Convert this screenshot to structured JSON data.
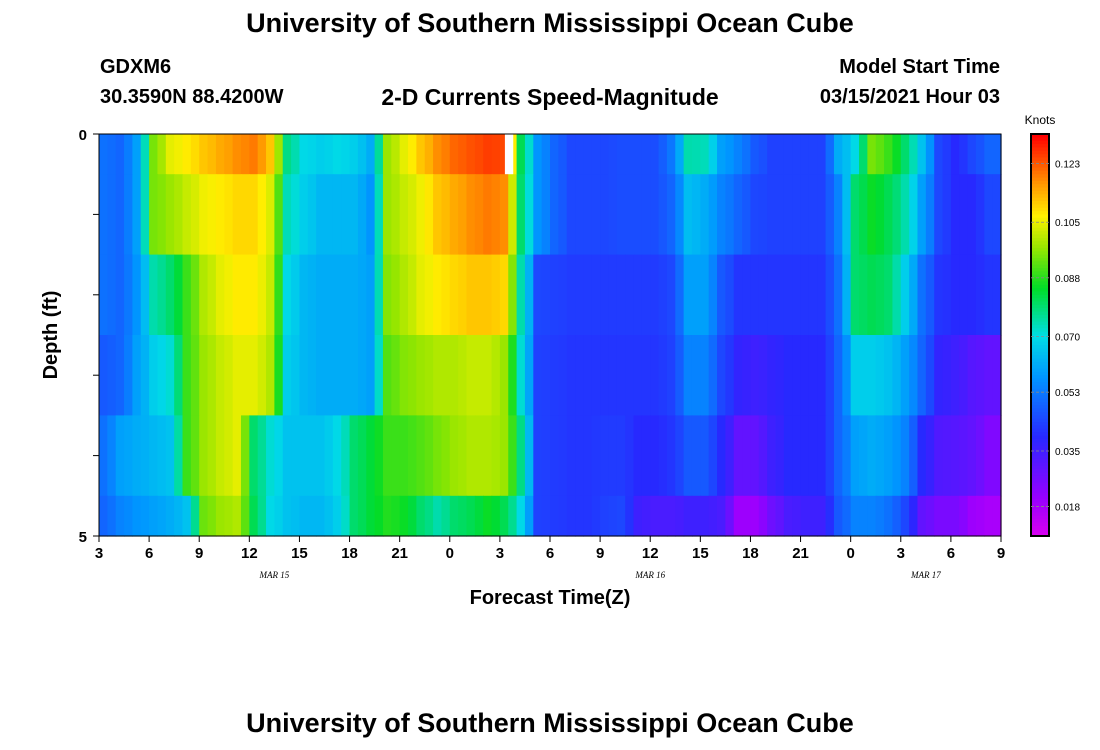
{
  "header": {
    "title": "University of Southern Mississippi Ocean Cube",
    "station": "GDXM6",
    "coordinates": "30.3590N 88.4200W",
    "chart_title": "2-D Currents Speed-Magnitude",
    "start_label": "Model Start Time",
    "start_value": "03/15/2021 Hour 03"
  },
  "footer": {
    "title": "University of Southern Mississippi Ocean Cube"
  },
  "chart_data": {
    "type": "heatmap",
    "title": "2-D Currents Speed-Magnitude",
    "xlabel": "Forecast Time(Z)",
    "ylabel": "Depth (ft)",
    "x_tick_labels": [
      "3",
      "6",
      "9",
      "12",
      "15",
      "18",
      "21",
      "0",
      "3",
      "6",
      "9",
      "12",
      "15",
      "18",
      "21",
      "0",
      "3",
      "6",
      "9"
    ],
    "date_labels": [
      "MAR 15",
      "MAR 16",
      "MAR 17"
    ],
    "y_tick_labels": [
      "0",
      "5"
    ],
    "ylim": [
      0,
      5
    ],
    "x_range_hours": [
      3,
      57
    ],
    "colorbar": {
      "title": "Knots",
      "range": [
        0.009,
        0.132
      ],
      "tick_labels": [
        "0.123",
        "0.105",
        "0.088",
        "0.070",
        "0.053",
        "0.035",
        "0.018"
      ],
      "tick_values": [
        0.123,
        0.105,
        0.088,
        0.07,
        0.053,
        0.035,
        0.018
      ]
    },
    "depth_layers": [
      "0-0.5",
      "0.5-1.5",
      "1.5-2.5",
      "2.5-3.5",
      "3.5-4.5",
      "4.5-5"
    ],
    "time_bins": 54,
    "speed_profile_knots": [
      [
        0.052,
        0.05,
        0.06,
        0.095,
        0.105,
        0.108,
        0.112,
        0.115,
        0.118,
        0.12,
        0.112,
        0.078,
        0.07,
        0.068,
        0.07,
        0.068,
        0.062,
        0.098,
        0.105,
        0.112,
        0.118,
        0.122,
        0.124,
        0.126,
        0.125,
        0.082,
        0.058,
        0.05,
        0.045,
        0.045,
        0.045,
        0.046,
        0.046,
        0.046,
        0.053,
        0.075,
        0.074,
        0.06,
        0.055,
        0.048,
        0.044,
        0.044,
        0.044,
        0.044,
        0.062,
        0.07,
        0.095,
        0.09,
        0.08,
        0.066,
        0.045,
        0.04,
        0.045,
        0.05
      ],
      [
        0.052,
        0.05,
        0.06,
        0.095,
        0.098,
        0.102,
        0.106,
        0.108,
        0.11,
        0.11,
        0.104,
        0.074,
        0.068,
        0.064,
        0.064,
        0.064,
        0.058,
        0.098,
        0.102,
        0.106,
        0.112,
        0.115,
        0.118,
        0.12,
        0.118,
        0.08,
        0.058,
        0.05,
        0.045,
        0.045,
        0.045,
        0.046,
        0.046,
        0.046,
        0.05,
        0.065,
        0.062,
        0.055,
        0.05,
        0.045,
        0.044,
        0.044,
        0.044,
        0.044,
        0.055,
        0.08,
        0.086,
        0.082,
        0.075,
        0.06,
        0.045,
        0.04,
        0.04,
        0.045
      ],
      [
        0.052,
        0.05,
        0.058,
        0.075,
        0.08,
        0.09,
        0.1,
        0.105,
        0.108,
        0.108,
        0.102,
        0.07,
        0.064,
        0.062,
        0.062,
        0.062,
        0.06,
        0.096,
        0.1,
        0.105,
        0.108,
        0.11,
        0.112,
        0.112,
        0.11,
        0.075,
        0.045,
        0.044,
        0.043,
        0.043,
        0.043,
        0.043,
        0.043,
        0.043,
        0.045,
        0.06,
        0.06,
        0.048,
        0.042,
        0.042,
        0.042,
        0.042,
        0.042,
        0.042,
        0.052,
        0.08,
        0.082,
        0.08,
        0.068,
        0.052,
        0.042,
        0.04,
        0.04,
        0.042
      ],
      [
        0.048,
        0.05,
        0.06,
        0.068,
        0.072,
        0.09,
        0.098,
        0.102,
        0.105,
        0.105,
        0.1,
        0.068,
        0.064,
        0.062,
        0.062,
        0.062,
        0.06,
        0.092,
        0.096,
        0.098,
        0.1,
        0.1,
        0.102,
        0.102,
        0.098,
        0.072,
        0.044,
        0.043,
        0.042,
        0.042,
        0.042,
        0.042,
        0.042,
        0.042,
        0.044,
        0.055,
        0.055,
        0.045,
        0.038,
        0.036,
        0.038,
        0.04,
        0.04,
        0.04,
        0.05,
        0.068,
        0.068,
        0.066,
        0.06,
        0.05,
        0.038,
        0.036,
        0.032,
        0.03
      ],
      [
        0.052,
        0.06,
        0.062,
        0.064,
        0.066,
        0.09,
        0.098,
        0.102,
        0.105,
        0.08,
        0.072,
        0.066,
        0.066,
        0.066,
        0.07,
        0.08,
        0.084,
        0.09,
        0.09,
        0.092,
        0.095,
        0.098,
        0.1,
        0.1,
        0.098,
        0.078,
        0.044,
        0.043,
        0.042,
        0.042,
        0.043,
        0.043,
        0.04,
        0.04,
        0.042,
        0.048,
        0.048,
        0.04,
        0.03,
        0.03,
        0.036,
        0.04,
        0.04,
        0.04,
        0.05,
        0.06,
        0.062,
        0.06,
        0.055,
        0.04,
        0.033,
        0.032,
        0.03,
        0.025
      ],
      [
        0.05,
        0.055,
        0.058,
        0.06,
        0.062,
        0.066,
        0.094,
        0.098,
        0.1,
        0.082,
        0.07,
        0.066,
        0.064,
        0.064,
        0.068,
        0.08,
        0.084,
        0.088,
        0.086,
        0.08,
        0.075,
        0.08,
        0.082,
        0.086,
        0.082,
        0.07,
        0.044,
        0.043,
        0.042,
        0.042,
        0.044,
        0.045,
        0.036,
        0.034,
        0.034,
        0.036,
        0.036,
        0.034,
        0.02,
        0.02,
        0.028,
        0.034,
        0.036,
        0.036,
        0.048,
        0.055,
        0.055,
        0.052,
        0.045,
        0.03,
        0.026,
        0.026,
        0.02,
        0.018
      ]
    ],
    "missing_cell": {
      "time_bin": 24,
      "depth_layer": 0
    },
    "grid": false
  }
}
